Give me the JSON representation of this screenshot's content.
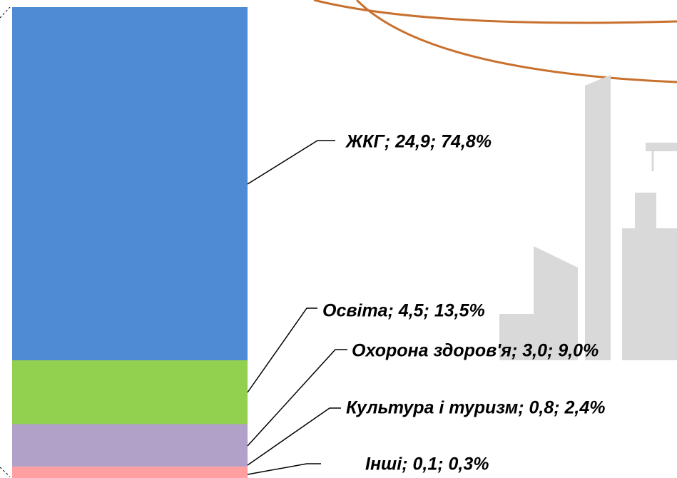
{
  "chart_data": {
    "type": "stacked-bar",
    "categories": [
      "ЖКГ",
      "Освіта",
      "Охорона здоров'я",
      "Культура і туризм",
      "Інші"
    ],
    "values": [
      24.9,
      4.5,
      3.0,
      0.8,
      0.1
    ],
    "value_labels": [
      "ЖКГ;  24,9;  74,8%",
      "Освіта;  4,5;  13,5%",
      "Охорона здоров'я;  3,0;  9,0%",
      "Культура і туризм;  0,8;  2,4%",
      "Інші;  0,1;  0,3%"
    ],
    "colors": [
      "#4f8bd4",
      "#92d050",
      "#b1a0c7",
      "#ff9f9f",
      "#e06666"
    ]
  }
}
